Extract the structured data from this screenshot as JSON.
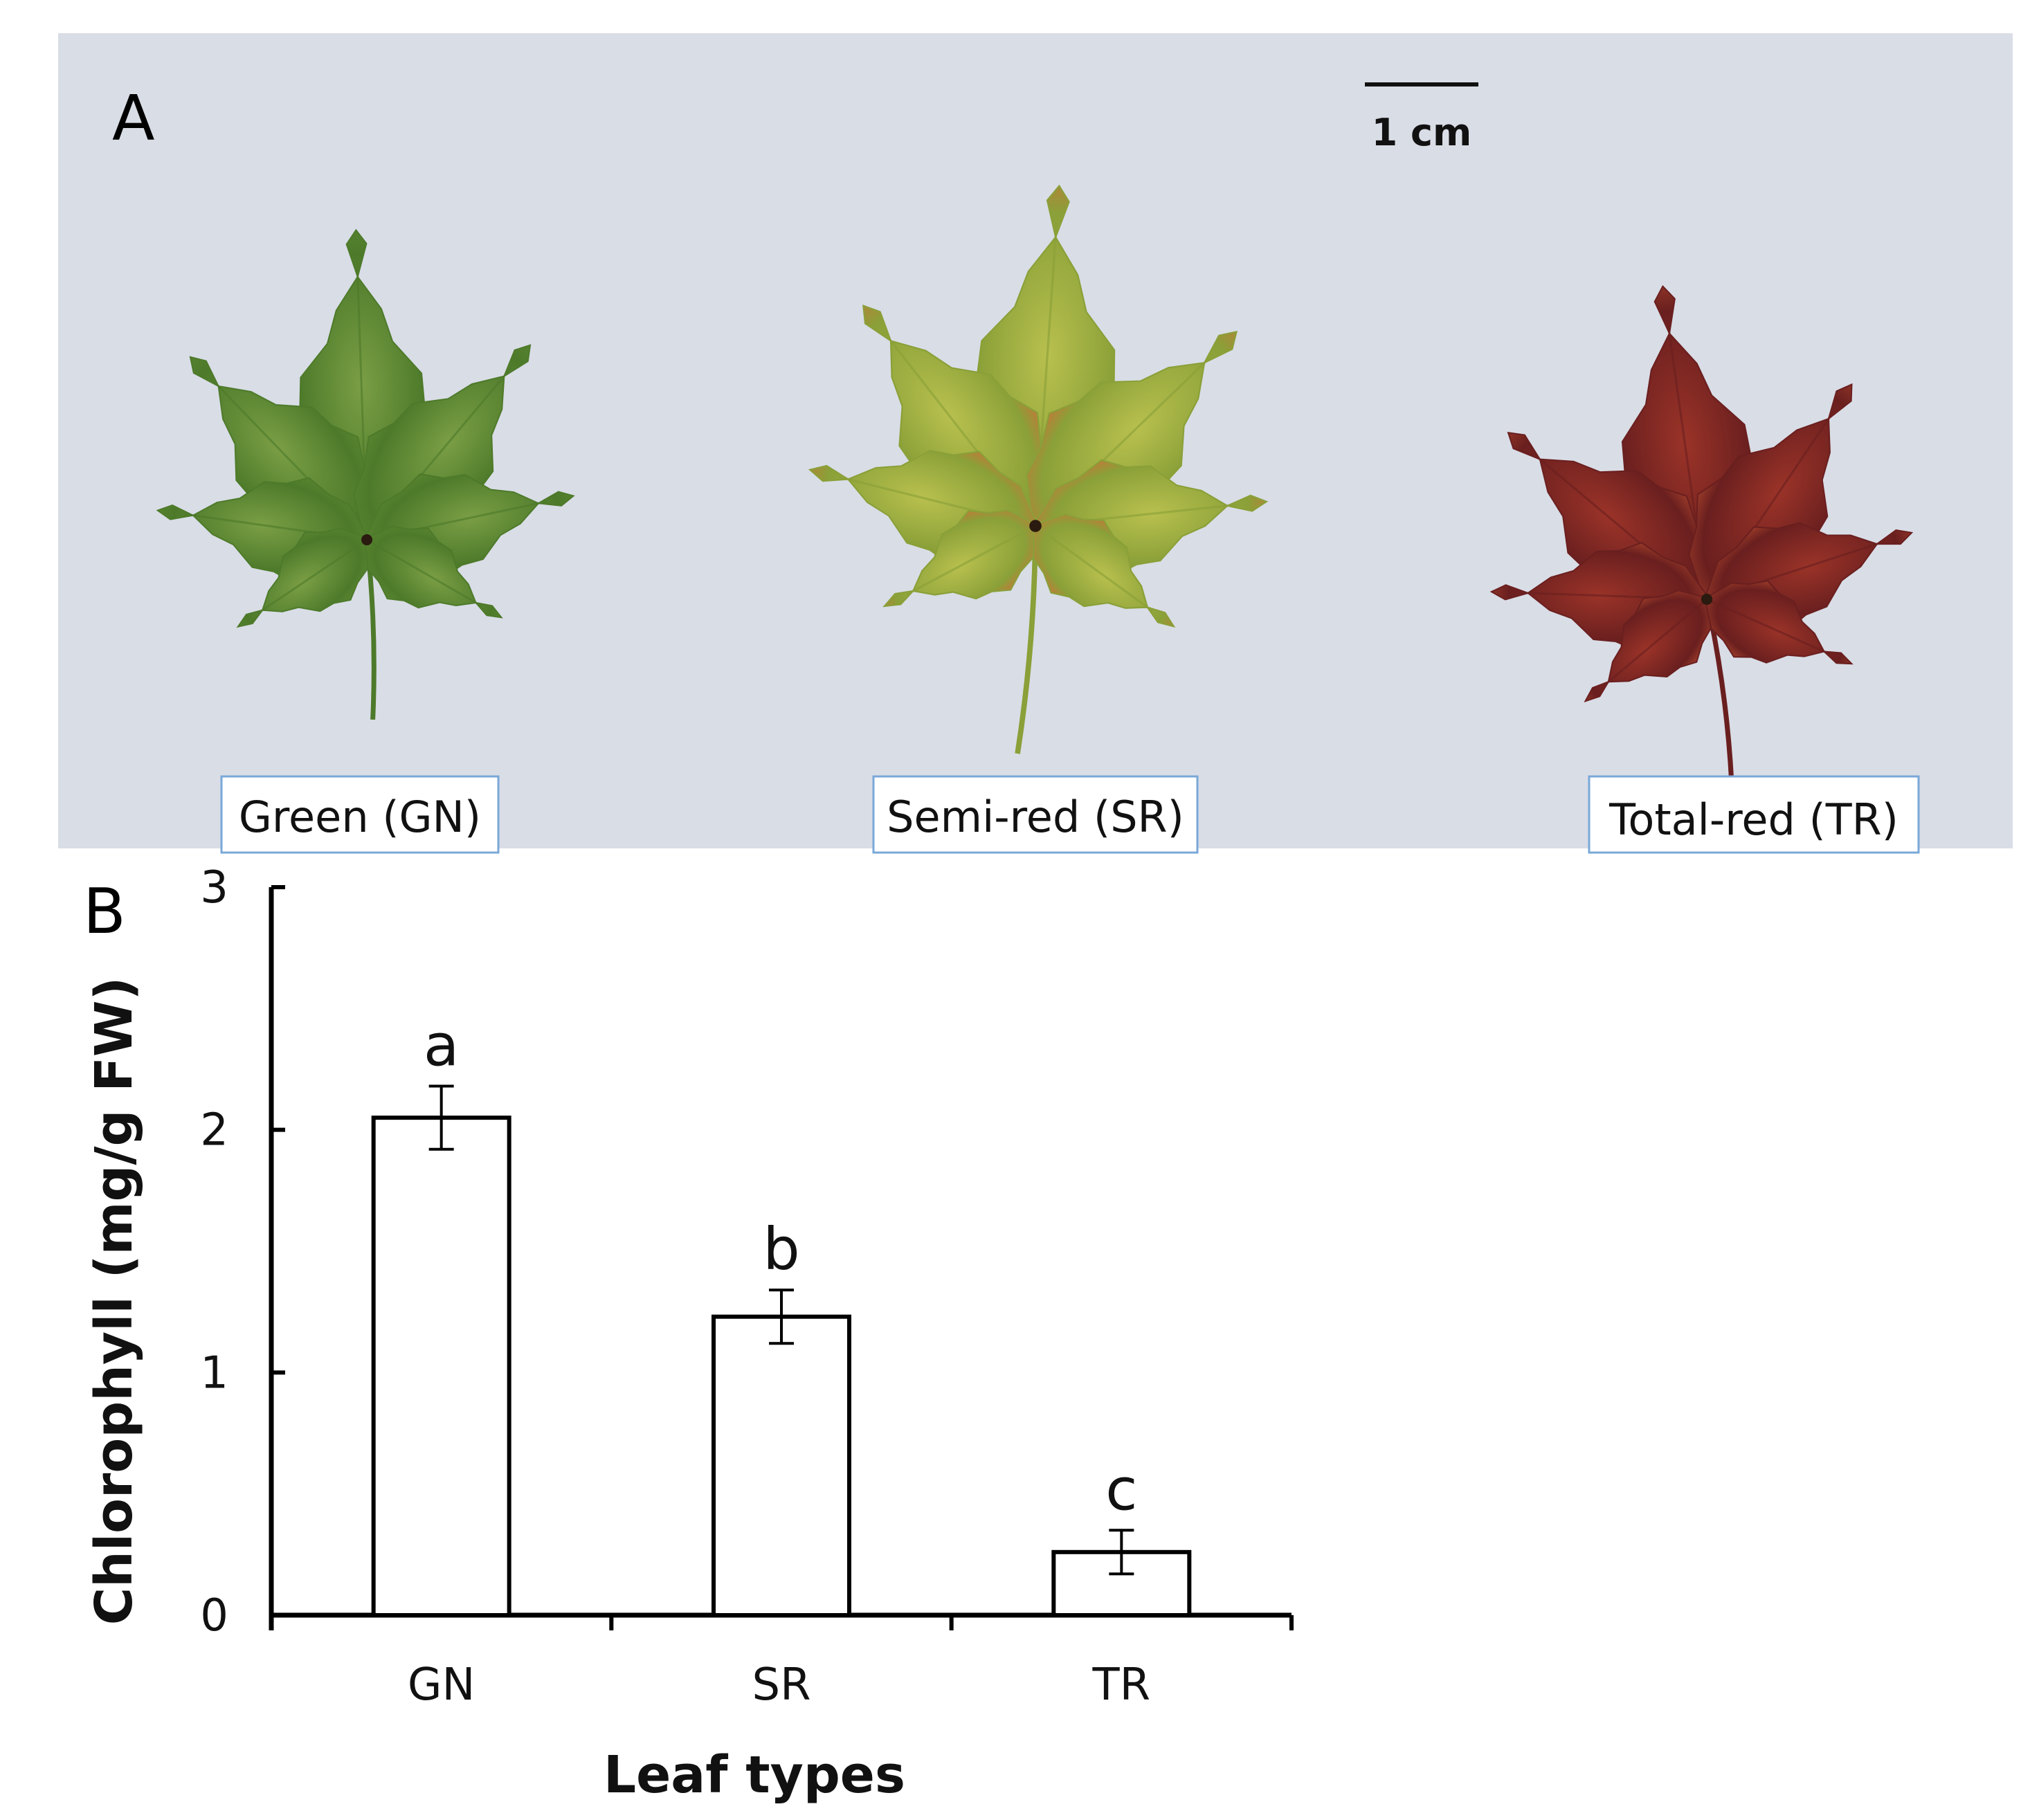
{
  "panel_a": {
    "label": "A",
    "scale_bar": {
      "label": "1 cm"
    },
    "background_color": "#d9dde6",
    "leaves": [
      {
        "caption": "Green (GN)",
        "colors": {
          "light": "#7a9e45",
          "dark": "#4d7a2a",
          "tip": "#5f8a34"
        }
      },
      {
        "caption": "Semi-red (SR)",
        "colors": {
          "light": "#b8c04e",
          "dark": "#8aa038",
          "tip": "#d86a3a"
        }
      },
      {
        "caption": "Total-red (TR)",
        "colors": {
          "light": "#9a3328",
          "dark": "#6a1f1f",
          "tip": "#b44a2e"
        }
      }
    ]
  },
  "panel_b": {
    "label": "B"
  },
  "chart_data": {
    "type": "bar",
    "categories": [
      "GN",
      "SR",
      "TR"
    ],
    "values": [
      2.05,
      1.23,
      0.26
    ],
    "errors": [
      0.13,
      0.11,
      0.09
    ],
    "significance_letters": [
      "a",
      "b",
      "c"
    ],
    "xlabel": "Leaf types",
    "ylabel": "Chlorophyll (mg/g FW)",
    "ylim": [
      0,
      3
    ],
    "yticks": [
      0,
      1,
      2,
      3
    ],
    "bar_fill": "#ffffff",
    "bar_stroke": "#000000",
    "grid": false,
    "legend": "none"
  }
}
